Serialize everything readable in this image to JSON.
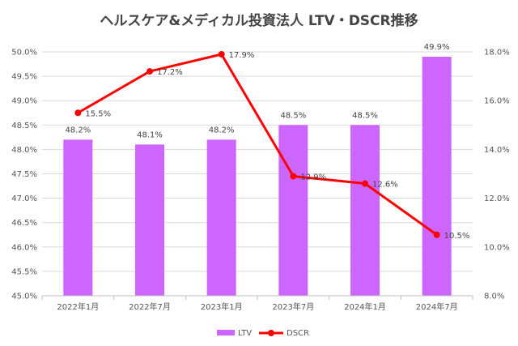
{
  "chart_data": {
    "type": "bar+line",
    "title": "ヘルスケア&メディカル投資法人 LTV・DSCR推移",
    "categories": [
      "2022年1月",
      "2022年7月",
      "2023年1月",
      "2023年7月",
      "2024年1月",
      "2024年7月"
    ],
    "series": [
      {
        "name": "LTV",
        "type": "bar",
        "axis": "left",
        "color": "#CC66FF",
        "values": [
          48.2,
          48.1,
          48.2,
          48.5,
          48.5,
          49.9
        ],
        "labels": [
          "48.2%",
          "48.1%",
          "48.2%",
          "48.5%",
          "48.5%",
          "49.9%"
        ]
      },
      {
        "name": "DSCR",
        "type": "line",
        "axis": "right",
        "color": "#FF0000",
        "values": [
          15.5,
          17.2,
          17.9,
          12.9,
          12.6,
          10.5
        ],
        "labels": [
          "15.5%",
          "17.2%",
          "17.9%",
          "12.9%",
          "12.6%",
          "10.5%"
        ]
      }
    ],
    "y_left": {
      "min": 45.0,
      "max": 50.0,
      "step": 0.5,
      "ticks": [
        "45.0%",
        "45.5%",
        "46.0%",
        "46.5%",
        "47.0%",
        "47.5%",
        "48.0%",
        "48.5%",
        "49.0%",
        "49.5%",
        "50.0%"
      ]
    },
    "y_right": {
      "min": 8.0,
      "max": 18.0,
      "step": 2.0,
      "ticks": [
        "8.0%",
        "10.0%",
        "12.0%",
        "14.0%",
        "16.0%",
        "18.0%"
      ]
    },
    "grid": true,
    "legend_position": "bottom"
  }
}
